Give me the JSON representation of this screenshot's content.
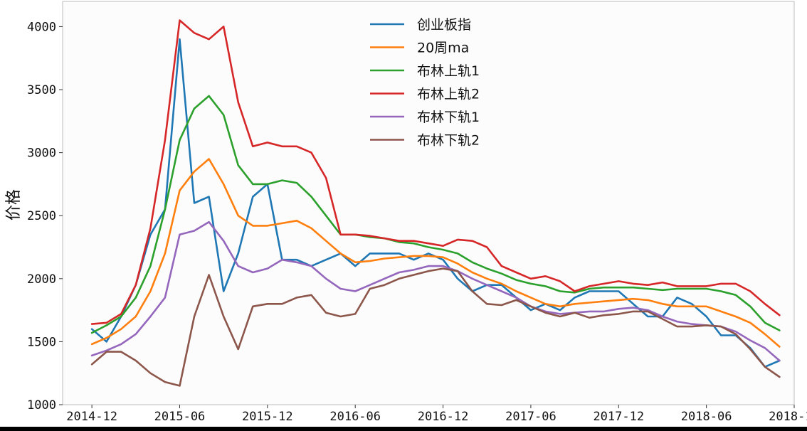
{
  "chart_data": {
    "type": "line",
    "title": "",
    "xlabel": "",
    "ylabel": "价格",
    "ylim": [
      1000,
      4200
    ],
    "yticks": [
      1000,
      1500,
      2000,
      2500,
      3000,
      3500,
      4000
    ],
    "xtick_labels": [
      "2014-12",
      "2015-06",
      "2015-12",
      "2016-06",
      "2016-12",
      "2017-06",
      "2017-12",
      "2018-06",
      "2018-12"
    ],
    "xlim": [
      "2014-10",
      "2018-12"
    ],
    "legend_position": "upper center",
    "grid": false,
    "dates": [
      "2014-12",
      "2015-01",
      "2015-02",
      "2015-03",
      "2015-04",
      "2015-05",
      "2015-06",
      "2015-07",
      "2015-08",
      "2015-09",
      "2015-10",
      "2015-11",
      "2015-12",
      "2016-01",
      "2016-02",
      "2016-03",
      "2016-04",
      "2016-05",
      "2016-06",
      "2016-07",
      "2016-08",
      "2016-09",
      "2016-10",
      "2016-11",
      "2016-12",
      "2017-01",
      "2017-02",
      "2017-03",
      "2017-04",
      "2017-05",
      "2017-06",
      "2017-07",
      "2017-08",
      "2017-09",
      "2017-10",
      "2017-11",
      "2017-12",
      "2018-01",
      "2018-02",
      "2018-03",
      "2018-04",
      "2018-05",
      "2018-06",
      "2018-07",
      "2018-08",
      "2018-09",
      "2018-10",
      "2018-11"
    ],
    "series": [
      {
        "name": "创业板指",
        "color": "#1f77b4",
        "values": [
          1600,
          1500,
          1700,
          1950,
          2350,
          2550,
          3900,
          2600,
          2650,
          1900,
          2200,
          2650,
          2750,
          2150,
          2150,
          2100,
          2150,
          2200,
          2100,
          2200,
          2200,
          2200,
          2150,
          2200,
          2150,
          2000,
          1900,
          1950,
          1950,
          1850,
          1750,
          1800,
          1750,
          1850,
          1900,
          1900,
          1900,
          1800,
          1700,
          1700,
          1850,
          1800,
          1700,
          1550,
          1550,
          1450,
          1300,
          1350
        ]
      },
      {
        "name": "20周ma",
        "color": "#ff7f0e",
        "values": [
          1480,
          1530,
          1600,
          1700,
          1900,
          2200,
          2700,
          2850,
          2950,
          2750,
          2500,
          2420,
          2420,
          2440,
          2460,
          2400,
          2300,
          2200,
          2130,
          2140,
          2160,
          2170,
          2180,
          2180,
          2170,
          2120,
          2050,
          2000,
          1960,
          1900,
          1850,
          1800,
          1780,
          1800,
          1810,
          1820,
          1830,
          1840,
          1830,
          1800,
          1780,
          1780,
          1780,
          1740,
          1700,
          1650,
          1560,
          1460
        ]
      },
      {
        "name": "布林上轨1",
        "color": "#2ca02c",
        "values": [
          1570,
          1630,
          1700,
          1850,
          2100,
          2550,
          3100,
          3350,
          3450,
          3300,
          2900,
          2750,
          2750,
          2780,
          2760,
          2650,
          2500,
          2350,
          2350,
          2330,
          2320,
          2290,
          2280,
          2250,
          2230,
          2200,
          2130,
          2080,
          2040,
          1990,
          1960,
          1940,
          1900,
          1890,
          1920,
          1930,
          1930,
          1930,
          1920,
          1910,
          1920,
          1920,
          1920,
          1900,
          1870,
          1780,
          1650,
          1590
        ]
      },
      {
        "name": "布林上轨2",
        "color": "#d62728",
        "values": [
          1640,
          1650,
          1720,
          1950,
          2400,
          3100,
          4050,
          3950,
          3900,
          4000,
          3400,
          3050,
          3080,
          3050,
          3050,
          3000,
          2800,
          2350,
          2350,
          2340,
          2320,
          2300,
          2300,
          2280,
          2260,
          2310,
          2300,
          2250,
          2100,
          2050,
          2000,
          2020,
          1980,
          1900,
          1940,
          1960,
          1980,
          1960,
          1950,
          1970,
          1940,
          1940,
          1940,
          1960,
          1960,
          1900,
          1800,
          1710
        ]
      },
      {
        "name": "布林下轨1",
        "color": "#9467bd",
        "values": [
          1390,
          1430,
          1480,
          1560,
          1700,
          1850,
          2350,
          2380,
          2450,
          2300,
          2100,
          2050,
          2080,
          2150,
          2130,
          2100,
          2000,
          1920,
          1900,
          1950,
          2000,
          2050,
          2070,
          2100,
          2100,
          2060,
          2000,
          1950,
          1900,
          1850,
          1780,
          1740,
          1720,
          1730,
          1740,
          1740,
          1760,
          1770,
          1750,
          1700,
          1660,
          1640,
          1630,
          1620,
          1580,
          1510,
          1450,
          1350
        ]
      },
      {
        "name": "布林下轨2",
        "color": "#8c564b",
        "values": [
          1320,
          1420,
          1420,
          1350,
          1250,
          1180,
          1150,
          1700,
          2030,
          1700,
          1440,
          1780,
          1800,
          1800,
          1850,
          1870,
          1730,
          1700,
          1720,
          1920,
          1950,
          2000,
          2030,
          2060,
          2080,
          2060,
          1900,
          1800,
          1790,
          1830,
          1780,
          1730,
          1700,
          1730,
          1690,
          1710,
          1720,
          1740,
          1740,
          1680,
          1620,
          1620,
          1630,
          1620,
          1560,
          1440,
          1300,
          1220
        ]
      }
    ]
  }
}
